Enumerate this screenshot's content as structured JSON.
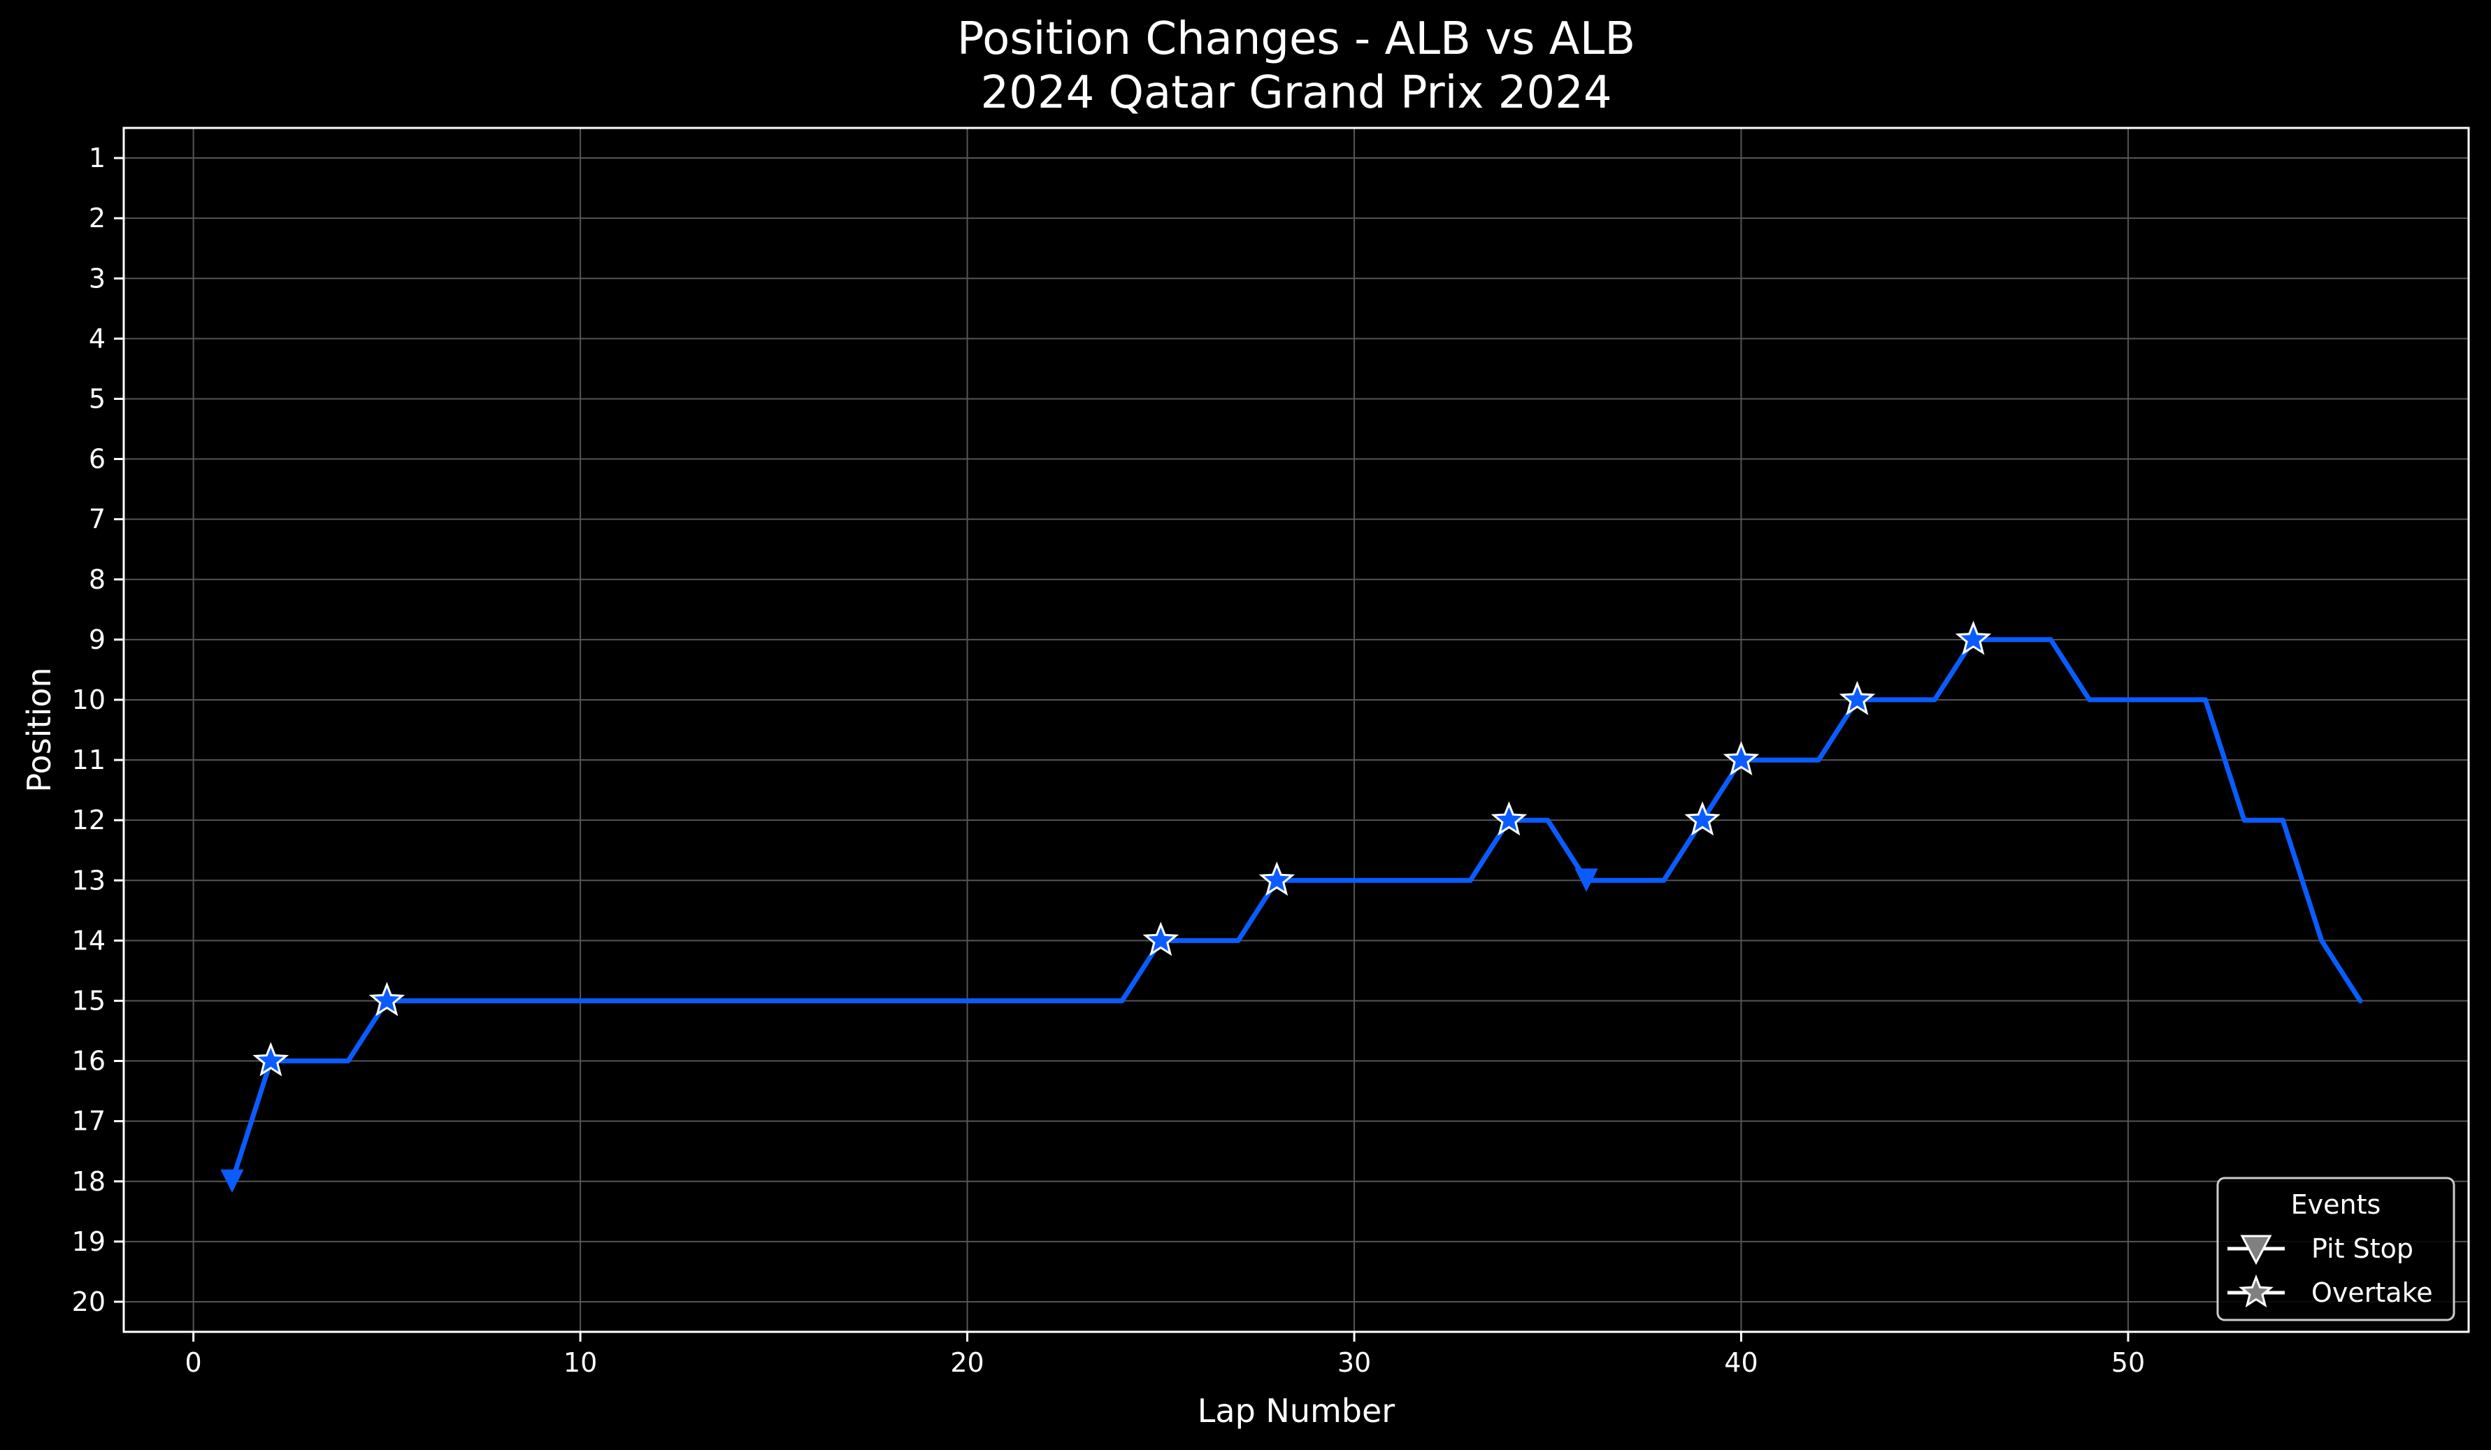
{
  "chart_data": {
    "type": "line",
    "title": "Position Changes - ALB vs ALB",
    "subtitle": "2024 Qatar Grand Prix 2024",
    "xlabel": "Lap Number",
    "ylabel": "Position",
    "xlim": [
      -1.8,
      58.8
    ],
    "ylim": [
      20.5,
      0.5
    ],
    "y_inverted": true,
    "x_ticks": [
      0,
      10,
      20,
      30,
      40,
      50
    ],
    "y_ticks": [
      1,
      2,
      3,
      4,
      5,
      6,
      7,
      8,
      9,
      10,
      11,
      12,
      13,
      14,
      15,
      16,
      17,
      18,
      19,
      20
    ],
    "grid": true,
    "legend_position": "lower-right",
    "legend_title": "Events",
    "series": [
      {
        "color": "#0a5cff",
        "x": [
          1,
          2,
          3,
          4,
          5,
          6,
          7,
          8,
          9,
          10,
          11,
          12,
          13,
          14,
          15,
          16,
          17,
          18,
          19,
          20,
          21,
          22,
          23,
          24,
          25,
          26,
          27,
          28,
          29,
          30,
          31,
          32,
          33,
          34,
          35,
          36,
          37,
          38,
          39,
          40,
          41,
          42,
          43,
          44,
          45,
          46,
          47,
          48,
          49,
          50,
          51,
          52,
          53,
          54,
          55,
          56
        ],
        "y": [
          18,
          16,
          16,
          16,
          15,
          15,
          15,
          15,
          15,
          15,
          15,
          15,
          15,
          15,
          15,
          15,
          15,
          15,
          15,
          15,
          15,
          15,
          15,
          15,
          14,
          14,
          14,
          13,
          13,
          13,
          13,
          13,
          13,
          12,
          12,
          13,
          13,
          13,
          12,
          11,
          11,
          11,
          10,
          10,
          10,
          9,
          9,
          9,
          10,
          10,
          10,
          10,
          12,
          12,
          14,
          15
        ]
      }
    ],
    "events": [
      {
        "name": "Pit Stop",
        "marker": "triangle-down-icon",
        "laps": [
          1,
          36
        ],
        "positions": [
          18,
          13
        ]
      },
      {
        "name": "Overtake",
        "marker": "star-icon",
        "laps": [
          2,
          5,
          25,
          28,
          34,
          39,
          40,
          43,
          46
        ],
        "positions": [
          16,
          15,
          14,
          13,
          12,
          12,
          11,
          10,
          9
        ]
      }
    ],
    "colors": {
      "background": "#000000",
      "line": "#0a5cff",
      "grid": "#555555",
      "axes": "#ffffff",
      "legend_marker_fill": "#808080"
    }
  }
}
